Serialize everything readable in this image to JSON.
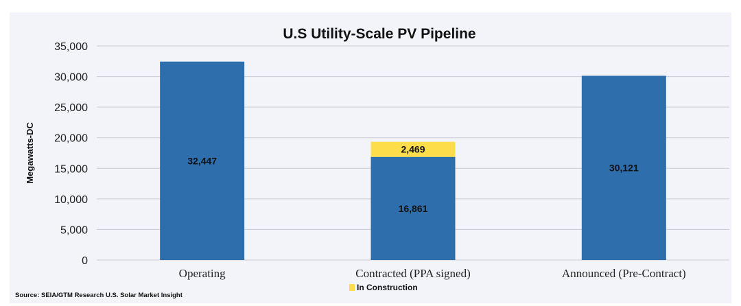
{
  "chart_data": {
    "type": "bar",
    "stacked": true,
    "title": "U.S Utility-Scale PV Pipeline",
    "xlabel": "",
    "ylabel": "Megawatts-DC",
    "ylim": [
      0,
      35000
    ],
    "yticks": [
      0,
      5000,
      10000,
      15000,
      20000,
      25000,
      30000,
      35000
    ],
    "ytick_labels": [
      "0",
      "5,000",
      "10,000",
      "15,000",
      "20,000",
      "25,000",
      "30,000",
      "35,000"
    ],
    "grid": true,
    "categories": [
      "Operating",
      "Contracted (PPA signed)",
      "Announced (Pre-Contract)"
    ],
    "series": [
      {
        "values": [
          32447,
          16861,
          30121
        ],
        "labels": [
          "32,447",
          "16,861",
          "30,121"
        ],
        "color": "#2e6ead"
      },
      {
        "name": "In Construction",
        "values": [
          0,
          2469,
          0
        ],
        "labels": [
          "",
          "2,469",
          ""
        ],
        "color": "#fedd4a"
      }
    ],
    "legend_placement": "bottom",
    "source": "Source: SEIA/GTM Research U.S. Solar Market Insight"
  }
}
